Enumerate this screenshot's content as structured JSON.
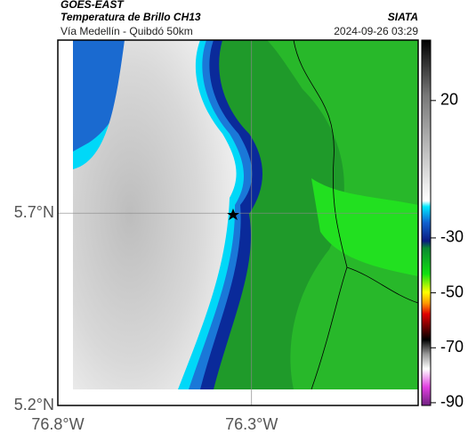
{
  "header": {
    "title": "GOES-EAST",
    "subtitle": "Temperatura de Brillo CH13",
    "route": "Vía Medellín - Quibdó 50km",
    "source": "SIATA",
    "timestamp": "2024-09-26 03:29"
  },
  "map": {
    "xlim": [
      -76.8,
      -75.87
    ],
    "ylim": [
      5.2,
      6.15
    ],
    "xticks": [
      {
        "value": -76.8,
        "label": "76.8°W"
      },
      {
        "value": -76.3,
        "label": "76.3°W"
      }
    ],
    "yticks": [
      {
        "value": 5.2,
        "label": "5.2°N"
      },
      {
        "value": 5.7,
        "label": "5.7°N"
      }
    ]
  },
  "colorbar": {
    "lim": [
      -91,
      42
    ],
    "ticks": [
      20,
      -30,
      -50,
      -70,
      -90
    ]
  }
}
